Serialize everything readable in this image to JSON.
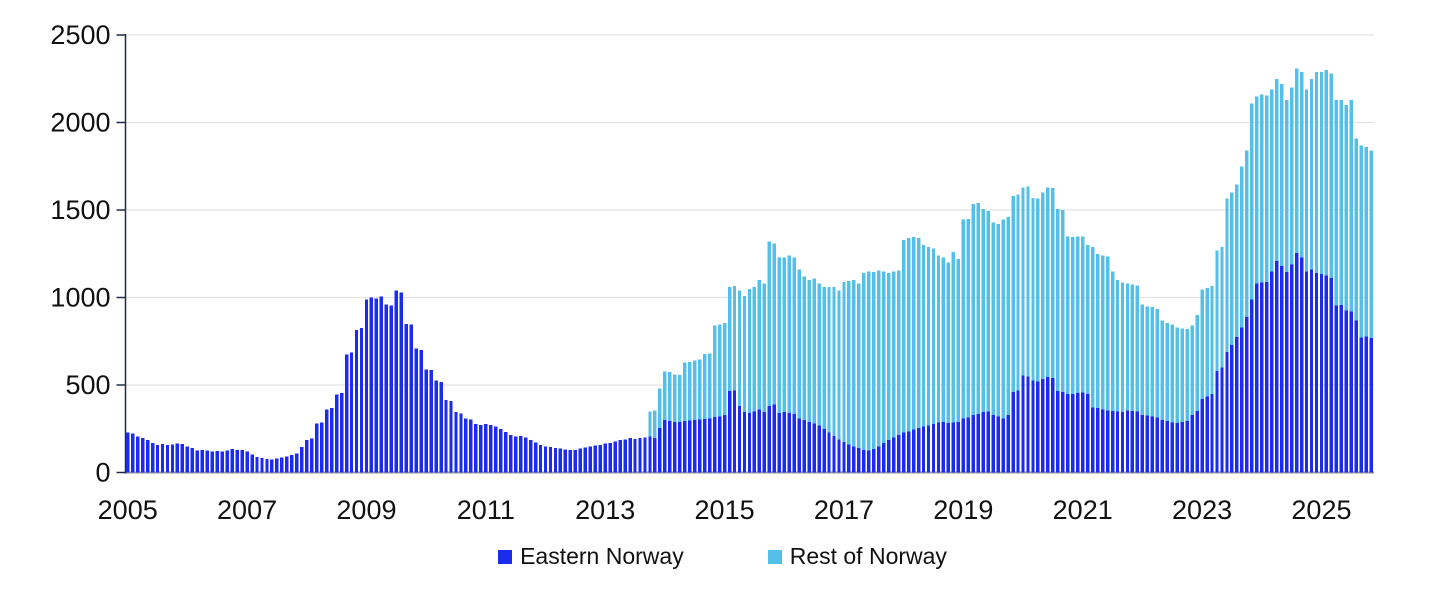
{
  "chart_data": {
    "type": "bar",
    "stacked": true,
    "title": "",
    "x_unit": "month",
    "x_range": {
      "start": "2005-01",
      "end": "2025-11"
    },
    "ylim": [
      0,
      2500
    ],
    "y_ticks": [
      0,
      500,
      1000,
      1500,
      2000,
      2500
    ],
    "x_tick_labels": [
      "2005",
      "2007",
      "2009",
      "2011",
      "2013",
      "2015",
      "2017",
      "2019",
      "2021",
      "2023",
      "2025"
    ],
    "grid": "horizontal",
    "legend_position": "bottom",
    "colors": {
      "axis": "#1f2c45",
      "grid": "#e4e4e4",
      "baseline": "#9b9b9b",
      "text": "#111111"
    },
    "series": [
      {
        "name": "Eastern Norway",
        "color": "#1b2cf0",
        "values": [
          230,
          222,
          205,
          196,
          186,
          168,
          158,
          162,
          156,
          160,
          165,
          162,
          148,
          140,
          126,
          130,
          126,
          120,
          124,
          120,
          126,
          134,
          130,
          130,
          120,
          104,
          90,
          82,
          76,
          74,
          80,
          86,
          92,
          100,
          110,
          145,
          185,
          195,
          280,
          285,
          360,
          368,
          445,
          455,
          675,
          685,
          815,
          825,
          990,
          1000,
          995,
          1005,
          960,
          955,
          1040,
          1030,
          850,
          845,
          710,
          700,
          590,
          585,
          525,
          518,
          415,
          408,
          345,
          338,
          310,
          303,
          278,
          272,
          278,
          272,
          262,
          248,
          232,
          215,
          205,
          208,
          200,
          186,
          172,
          158,
          150,
          145,
          140,
          136,
          132,
          128,
          130,
          136,
          142,
          150,
          155,
          158,
          165,
          170,
          178,
          185,
          190,
          196,
          192,
          196,
          200,
          206,
          196,
          255,
          300,
          295,
          290,
          288,
          295,
          298,
          300,
          302,
          305,
          308,
          318,
          320,
          330,
          465,
          470,
          380,
          345,
          340,
          350,
          360,
          345,
          380,
          390,
          340,
          345,
          340,
          335,
          310,
          300,
          290,
          280,
          270,
          250,
          230,
          210,
          190,
          175,
          160,
          150,
          140,
          130,
          125,
          135,
          150,
          168,
          185,
          200,
          215,
          228,
          235,
          245,
          255,
          262,
          270,
          278,
          285,
          288,
          282,
          285,
          290,
          310,
          315,
          330,
          335,
          345,
          350,
          330,
          320,
          310,
          330,
          460,
          470,
          555,
          550,
          525,
          520,
          535,
          545,
          540,
          465,
          460,
          450,
          448,
          455,
          457,
          450,
          372,
          368,
          360,
          355,
          352,
          350,
          345,
          355,
          352,
          348,
          330,
          325,
          320,
          315,
          300,
          295,
          285,
          282,
          288,
          295,
          330,
          352,
          420,
          435,
          450,
          580,
          600,
          690,
          730,
          775,
          830,
          890,
          990,
          1080,
          1085,
          1090,
          1150,
          1210,
          1180,
          1145,
          1190,
          1255,
          1230,
          1150,
          1160,
          1140,
          1135,
          1125,
          1112,
          955,
          958,
          925,
          920,
          868,
          772,
          777,
          770
        ]
      },
      {
        "name": "Rest of Norway",
        "color": "#54bfe8",
        "values": [
          0,
          0,
          0,
          0,
          0,
          0,
          0,
          0,
          0,
          0,
          0,
          0,
          0,
          0,
          0,
          0,
          0,
          0,
          0,
          0,
          0,
          0,
          0,
          0,
          0,
          0,
          0,
          0,
          0,
          0,
          0,
          0,
          0,
          0,
          0,
          0,
          0,
          0,
          0,
          0,
          0,
          0,
          0,
          0,
          0,
          0,
          0,
          0,
          0,
          0,
          0,
          0,
          0,
          0,
          0,
          0,
          0,
          0,
          0,
          0,
          0,
          0,
          0,
          0,
          0,
          0,
          0,
          0,
          0,
          0,
          0,
          0,
          0,
          0,
          0,
          0,
          0,
          0,
          0,
          0,
          0,
          0,
          0,
          0,
          0,
          0,
          0,
          0,
          0,
          0,
          0,
          0,
          0,
          0,
          0,
          0,
          0,
          0,
          0,
          0,
          0,
          0,
          0,
          0,
          0,
          142,
          158,
          225,
          277,
          280,
          270,
          270,
          333,
          334,
          340,
          343,
          372,
          372,
          522,
          525,
          525,
          595,
          595,
          660,
          665,
          710,
          710,
          740,
          735,
          940,
          920,
          890,
          885,
          900,
          895,
          850,
          820,
          810,
          830,
          810,
          810,
          830,
          850,
          850,
          915,
          935,
          950,
          940,
          1010,
          1025,
          1010,
          1005,
          982,
          955,
          950,
          940,
          1102,
          1105,
          1100,
          1085,
          1038,
          1020,
          1002,
          955,
          942,
          918,
          975,
          930,
          1135,
          1135,
          1205,
          1205,
          1160,
          1145,
          1100,
          1100,
          1135,
          1130,
          1120,
          1120,
          1075,
          1085,
          1045,
          1045,
          1065,
          1085,
          1085,
          1040,
          1040,
          900,
          897,
          895,
          893,
          850,
          918,
          882,
          880,
          880,
          798,
          750,
          740,
          725,
          723,
          722,
          630,
          625,
          625,
          620,
          570,
          560,
          560,
          548,
          534,
          525,
          510,
          548,
          625,
          620,
          615,
          690,
          690,
          875,
          870,
          870,
          920,
          950,
          1120,
          1070,
          1075,
          1065,
          1040,
          1040,
          1040,
          985,
          1010,
          1055,
          1060,
          1040,
          1090,
          1150,
          1155,
          1175,
          1168,
          1175,
          1172,
          1175,
          1210,
          1042,
          1098,
          1083,
          1070
        ]
      }
    ]
  },
  "legend": {
    "eastern_label": "Eastern Norway",
    "rest_label": "Rest of Norway"
  }
}
